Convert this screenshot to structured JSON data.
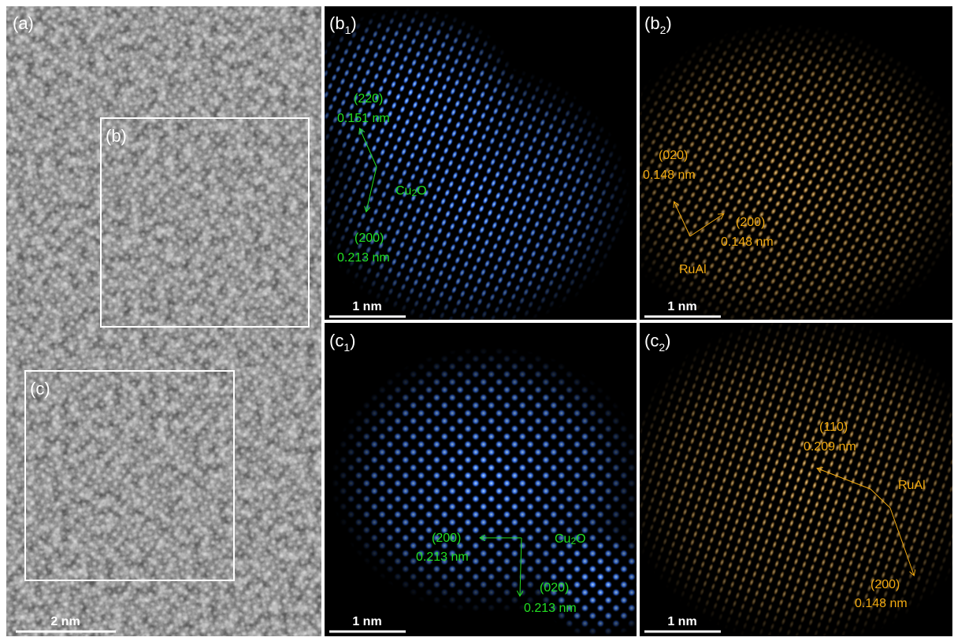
{
  "panels": {
    "a": {
      "label": "(a)",
      "insets": [
        {
          "label": "(b)"
        },
        {
          "label": "(c)"
        }
      ],
      "scale_bar": "2 nm"
    },
    "b1": {
      "label": {
        "main": "(b",
        "sub": "1",
        "end": ")"
      },
      "phase": {
        "main": "Cu",
        "sub": "2",
        "end": "O"
      },
      "annotations": [
        {
          "plane": "(220)",
          "spacing": "0.151 nm"
        },
        {
          "plane": "(200)",
          "spacing": "0.213 nm"
        }
      ],
      "scale_bar": "1 nm"
    },
    "b2": {
      "label": {
        "main": "(b",
        "sub": "2",
        "end": ")"
      },
      "phase": "RuAl",
      "annotations": [
        {
          "plane": "(020)",
          "spacing": "0.148 nm"
        },
        {
          "plane": "(200)",
          "spacing": "0.148 nm"
        }
      ],
      "scale_bar": "1 nm"
    },
    "c1": {
      "label": {
        "main": "(c",
        "sub": "1",
        "end": ")"
      },
      "phase": {
        "main": "Cu",
        "sub": "2",
        "end": "O"
      },
      "annotations": [
        {
          "plane": "(200)",
          "spacing": "0.213 nm"
        },
        {
          "plane": "(020)",
          "spacing": "0.213 nm"
        }
      ],
      "scale_bar": "1 nm"
    },
    "c2": {
      "label": {
        "main": "(c",
        "sub": "2",
        "end": ")"
      },
      "phase": "RuAl",
      "annotations": [
        {
          "plane": "(110)",
          "spacing": "0.209 nm"
        },
        {
          "plane": "(200)",
          "spacing": "0.148 nm"
        }
      ],
      "scale_bar": "1 nm"
    }
  }
}
